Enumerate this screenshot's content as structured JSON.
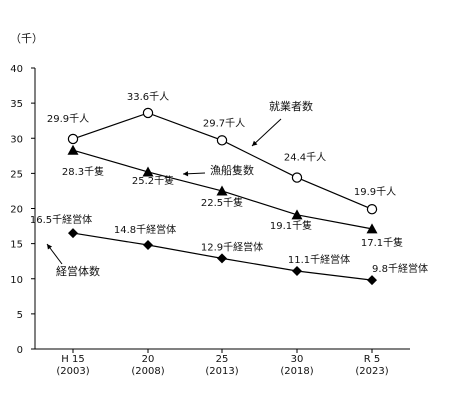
{
  "chart_data": {
    "type": "line",
    "unit_label": "（千）",
    "ylim": [
      0,
      40
    ],
    "yticks": [
      "0",
      "5",
      "10",
      "15",
      "20",
      "25",
      "30",
      "35",
      "40"
    ],
    "categories": [
      {
        "era": "H 15",
        "year": "(2003)"
      },
      {
        "era": "20",
        "year": "(2008)"
      },
      {
        "era": "25",
        "year": "(2013)"
      },
      {
        "era": "30",
        "year": "(2018)"
      },
      {
        "era": "R 5",
        "year": "(2023)"
      }
    ],
    "series": [
      {
        "name": "就業者数",
        "marker": "open-circle",
        "values": [
          29.9,
          33.6,
          29.7,
          24.4,
          19.9
        ],
        "labels": [
          "29.9千人",
          "33.6千人",
          "29.7千人",
          "24.4千人",
          "19.9千人"
        ]
      },
      {
        "name": "漁船隻数",
        "marker": "filled-triangle",
        "values": [
          28.3,
          25.2,
          22.5,
          19.1,
          17.1
        ],
        "labels": [
          "28.3千隻",
          "25.2千隻",
          "22.5千隻",
          "19.1千隻",
          "17.1千隻"
        ]
      },
      {
        "name": "経営体数",
        "marker": "filled-diamond",
        "values": [
          16.5,
          14.8,
          12.9,
          11.1,
          9.8
        ],
        "labels": [
          "16.5千経営体",
          "14.8千経営体",
          "12.9千経営体",
          "11.1千経営体",
          "9.8千経営体"
        ]
      }
    ],
    "grid": false,
    "line_color": "#000000"
  }
}
